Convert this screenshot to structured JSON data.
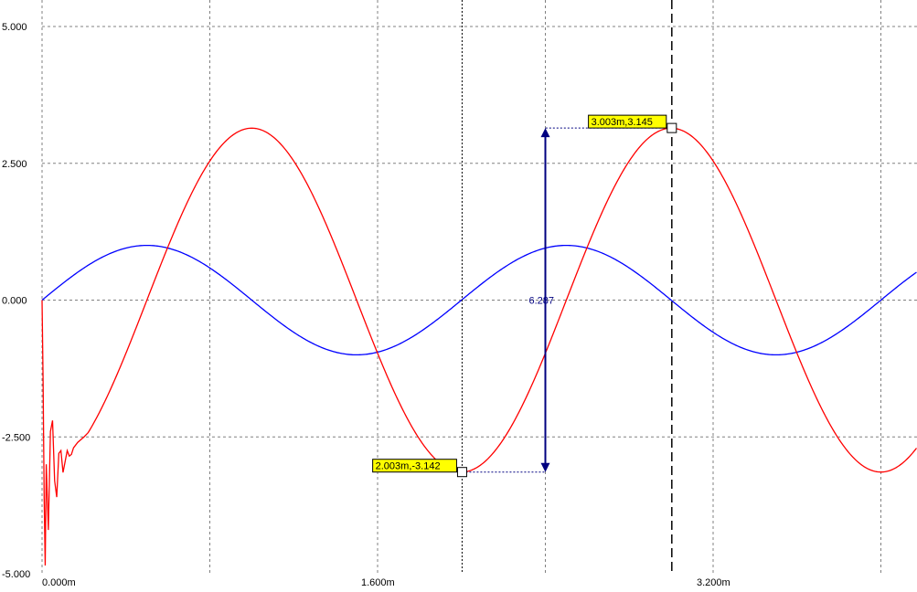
{
  "chart_data": {
    "type": "line",
    "x_range": [
      0,
      4.17
    ],
    "ylim": [
      -5,
      5
    ],
    "grid": true,
    "y_ticks": [
      {
        "value": 5,
        "label": "5.000"
      },
      {
        "value": 2.5,
        "label": "2.500"
      },
      {
        "value": 0,
        "label": "0.000"
      },
      {
        "value": -2.5,
        "label": "-2.500"
      },
      {
        "value": -5,
        "label": "-5.000"
      }
    ],
    "x_ticks": [
      {
        "value": 0,
        "label": "0.000m"
      },
      {
        "value": 1.6,
        "label": "1.600m"
      },
      {
        "value": 3.2,
        "label": "3.200m"
      }
    ],
    "series": [
      {
        "color": "#0000ff",
        "function": "sin",
        "amplitude": 1.0,
        "period": 2.0,
        "phase": 0,
        "x_start": 0,
        "x_end": 4.17
      },
      {
        "color": "#ff0000",
        "function": "sin",
        "amplitude": 3.142,
        "period": 2.0,
        "phase": -0.5,
        "x_start": 0.22,
        "x_end": 4.17,
        "startup_points": [
          [
            0.0,
            0.0
          ],
          [
            0.005,
            -1.5
          ],
          [
            0.01,
            -3.6
          ],
          [
            0.015,
            -4.85
          ],
          [
            0.02,
            -3.0
          ],
          [
            0.03,
            -4.2
          ],
          [
            0.04,
            -2.4
          ],
          [
            0.05,
            -2.2
          ],
          [
            0.06,
            -3.3
          ],
          [
            0.07,
            -3.6
          ],
          [
            0.08,
            -2.8
          ],
          [
            0.09,
            -2.75
          ],
          [
            0.1,
            -3.15
          ],
          [
            0.11,
            -2.95
          ],
          [
            0.12,
            -2.75
          ],
          [
            0.13,
            -2.85
          ],
          [
            0.14,
            -2.82
          ],
          [
            0.15,
            -2.7
          ],
          [
            0.17,
            -2.6
          ],
          [
            0.2,
            -2.5
          ]
        ]
      }
    ],
    "cursors": [
      {
        "x": 2.003,
        "y": -3.142,
        "label": "2.003m,-3.142",
        "style": "dotted"
      },
      {
        "x": 3.003,
        "y": 3.145,
        "label": "3.003m,3.145",
        "style": "dashed"
      }
    ],
    "delta": {
      "x": 2.4,
      "y_from": -3.142,
      "y_to": 3.145,
      "label": "6.287"
    },
    "colors": {
      "grid": "#808080",
      "cursor": "#000000",
      "delta_arrow": "#000080",
      "label_bg": "#ffff00"
    }
  }
}
